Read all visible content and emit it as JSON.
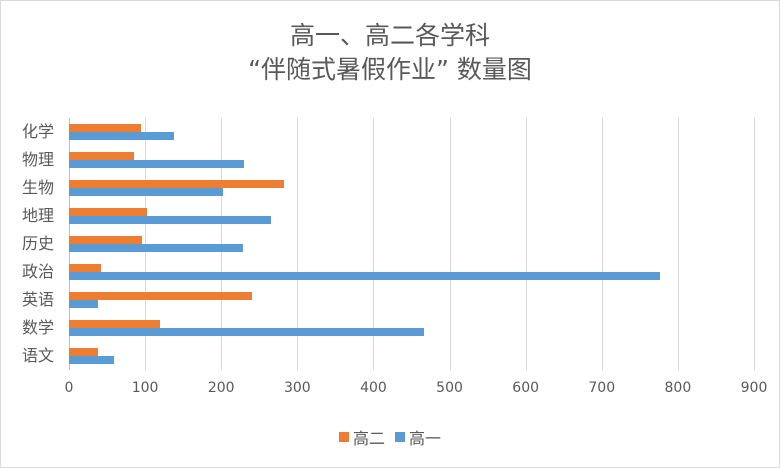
{
  "chart_data": {
    "type": "bar",
    "orientation": "horizontal",
    "title": "高一、高二各学科 “伴随式暑假作业” 数量图",
    "title_lines": [
      "高一、高二各学科",
      "“伴随式暑假作业” 数量图"
    ],
    "xlabel": "",
    "ylabel": "",
    "categories": [
      "语文",
      "数学",
      "英语",
      "政治",
      "历史",
      "地理",
      "生物",
      "物理",
      "化学"
    ],
    "series": [
      {
        "name": "高二",
        "color": "#ed7d31",
        "values": [
          38,
          119,
          240,
          42,
          96,
          102,
          283,
          85,
          94
        ]
      },
      {
        "name": "高一",
        "color": "#5b9bd5",
        "values": [
          59,
          466,
          38,
          777,
          228,
          266,
          202,
          230,
          138
        ]
      }
    ],
    "xlim": [
      0,
      900
    ],
    "xticks": [
      "0",
      "100",
      "200",
      "300",
      "400",
      "500",
      "600",
      "700",
      "800",
      "900"
    ],
    "grid": true,
    "legend_position": "bottom",
    "legend": [
      "高二",
      "高一"
    ]
  }
}
